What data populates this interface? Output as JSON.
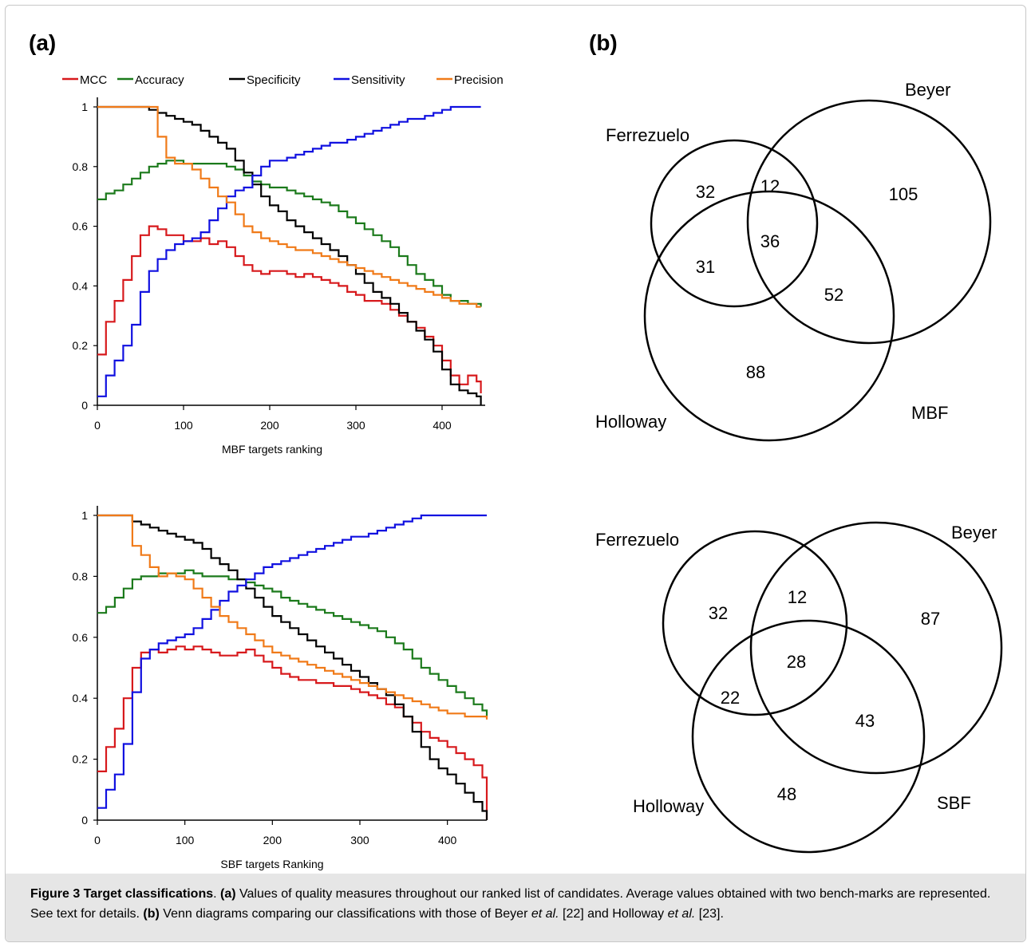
{
  "panel_a_label": "(a)",
  "panel_b_label": "(b)",
  "colors": {
    "MCC": "#d7191c",
    "Accuracy": "#1b7a1b",
    "Specificity": "#000000",
    "Sensitivity": "#1010e0",
    "Precision": "#f07a18"
  },
  "chart_data": [
    {
      "type": "line",
      "xlabel": "MBF targets ranking",
      "ylabel": "",
      "xlim": [
        0,
        450
      ],
      "ylim": [
        0,
        1
      ],
      "xticks": [
        "0",
        "100",
        "200",
        "300",
        "400"
      ],
      "yticks": [
        "0",
        "0.2",
        "0.4",
        "0.6",
        "0.8",
        "1"
      ],
      "legend": "top",
      "x": [
        0,
        10,
        20,
        30,
        40,
        50,
        60,
        70,
        80,
        90,
        100,
        110,
        120,
        130,
        140,
        150,
        160,
        170,
        180,
        190,
        200,
        210,
        220,
        230,
        240,
        250,
        260,
        270,
        280,
        290,
        300,
        310,
        320,
        330,
        340,
        350,
        360,
        370,
        380,
        390,
        400,
        410,
        420,
        430,
        440,
        445
      ],
      "series": [
        {
          "name": "MCC",
          "values": [
            0.17,
            0.28,
            0.35,
            0.42,
            0.5,
            0.57,
            0.6,
            0.59,
            0.57,
            0.57,
            0.55,
            0.55,
            0.56,
            0.54,
            0.55,
            0.53,
            0.5,
            0.47,
            0.45,
            0.44,
            0.45,
            0.45,
            0.44,
            0.43,
            0.44,
            0.43,
            0.42,
            0.41,
            0.4,
            0.38,
            0.37,
            0.35,
            0.35,
            0.34,
            0.32,
            0.3,
            0.28,
            0.26,
            0.23,
            0.2,
            0.15,
            0.1,
            0.07,
            0.1,
            0.08,
            0.04
          ]
        },
        {
          "name": "Accuracy",
          "values": [
            0.69,
            0.71,
            0.72,
            0.74,
            0.76,
            0.78,
            0.8,
            0.81,
            0.82,
            0.82,
            0.81,
            0.81,
            0.81,
            0.81,
            0.81,
            0.8,
            0.79,
            0.77,
            0.75,
            0.74,
            0.73,
            0.73,
            0.72,
            0.71,
            0.7,
            0.69,
            0.68,
            0.67,
            0.65,
            0.63,
            0.61,
            0.59,
            0.57,
            0.55,
            0.53,
            0.5,
            0.47,
            0.44,
            0.42,
            0.4,
            0.37,
            0.35,
            0.35,
            0.34,
            0.34,
            0.33
          ]
        },
        {
          "name": "Specificity",
          "values": [
            1.0,
            1.0,
            1.0,
            1.0,
            1.0,
            1.0,
            0.99,
            0.98,
            0.97,
            0.96,
            0.95,
            0.94,
            0.92,
            0.9,
            0.88,
            0.86,
            0.82,
            0.78,
            0.74,
            0.7,
            0.67,
            0.65,
            0.62,
            0.6,
            0.58,
            0.56,
            0.54,
            0.52,
            0.5,
            0.47,
            0.44,
            0.41,
            0.38,
            0.36,
            0.34,
            0.31,
            0.28,
            0.25,
            0.22,
            0.18,
            0.12,
            0.07,
            0.05,
            0.04,
            0.03,
            0.0
          ]
        },
        {
          "name": "Sensitivity",
          "values": [
            0.03,
            0.1,
            0.15,
            0.2,
            0.27,
            0.38,
            0.45,
            0.49,
            0.52,
            0.54,
            0.55,
            0.56,
            0.58,
            0.62,
            0.66,
            0.7,
            0.72,
            0.73,
            0.77,
            0.8,
            0.82,
            0.82,
            0.83,
            0.84,
            0.85,
            0.86,
            0.87,
            0.88,
            0.88,
            0.89,
            0.9,
            0.91,
            0.92,
            0.93,
            0.94,
            0.95,
            0.96,
            0.96,
            0.97,
            0.98,
            0.99,
            1.0,
            1.0,
            1.0,
            1.0,
            1.0
          ]
        },
        {
          "name": "Precision",
          "values": [
            1.0,
            1.0,
            1.0,
            1.0,
            1.0,
            1.0,
            1.0,
            0.9,
            0.83,
            0.81,
            0.81,
            0.79,
            0.76,
            0.73,
            0.7,
            0.68,
            0.64,
            0.6,
            0.58,
            0.56,
            0.55,
            0.54,
            0.53,
            0.52,
            0.52,
            0.51,
            0.5,
            0.49,
            0.48,
            0.47,
            0.46,
            0.45,
            0.44,
            0.43,
            0.42,
            0.41,
            0.4,
            0.39,
            0.38,
            0.37,
            0.36,
            0.35,
            0.34,
            0.34,
            0.33,
            0.33
          ]
        }
      ]
    },
    {
      "type": "line",
      "xlabel": "SBF targets Ranking",
      "ylabel": "",
      "xlim": [
        0,
        445
      ],
      "ylim": [
        0,
        1
      ],
      "xticks": [
        "0",
        "100",
        "200",
        "300",
        "400"
      ],
      "yticks": [
        "0",
        "0.2",
        "0.4",
        "0.6",
        "0.8",
        "1"
      ],
      "x": [
        0,
        10,
        20,
        30,
        40,
        50,
        60,
        70,
        80,
        90,
        100,
        110,
        120,
        130,
        140,
        150,
        160,
        170,
        180,
        190,
        200,
        210,
        220,
        230,
        240,
        250,
        260,
        270,
        280,
        290,
        300,
        310,
        320,
        330,
        340,
        350,
        360,
        370,
        380,
        390,
        400,
        410,
        420,
        430,
        440,
        445
      ],
      "series": [
        {
          "name": "MCC",
          "values": [
            0.16,
            0.24,
            0.3,
            0.4,
            0.5,
            0.55,
            0.56,
            0.55,
            0.56,
            0.57,
            0.56,
            0.57,
            0.56,
            0.55,
            0.54,
            0.54,
            0.55,
            0.56,
            0.54,
            0.52,
            0.5,
            0.48,
            0.47,
            0.46,
            0.46,
            0.45,
            0.45,
            0.44,
            0.44,
            0.43,
            0.42,
            0.41,
            0.4,
            0.38,
            0.37,
            0.34,
            0.32,
            0.29,
            0.27,
            0.26,
            0.24,
            0.22,
            0.2,
            0.18,
            0.14,
            0.0
          ]
        },
        {
          "name": "Accuracy",
          "values": [
            0.68,
            0.7,
            0.73,
            0.76,
            0.79,
            0.8,
            0.8,
            0.81,
            0.81,
            0.81,
            0.82,
            0.81,
            0.8,
            0.8,
            0.8,
            0.79,
            0.79,
            0.78,
            0.77,
            0.76,
            0.75,
            0.73,
            0.72,
            0.71,
            0.7,
            0.69,
            0.68,
            0.67,
            0.66,
            0.65,
            0.64,
            0.63,
            0.62,
            0.6,
            0.58,
            0.56,
            0.53,
            0.5,
            0.48,
            0.46,
            0.44,
            0.42,
            0.4,
            0.38,
            0.36,
            0.34
          ]
        },
        {
          "name": "Specificity",
          "values": [
            1.0,
            1.0,
            1.0,
            1.0,
            0.98,
            0.97,
            0.96,
            0.95,
            0.94,
            0.93,
            0.92,
            0.91,
            0.89,
            0.86,
            0.84,
            0.82,
            0.79,
            0.76,
            0.73,
            0.7,
            0.67,
            0.65,
            0.63,
            0.61,
            0.59,
            0.57,
            0.55,
            0.53,
            0.51,
            0.49,
            0.47,
            0.45,
            0.43,
            0.41,
            0.38,
            0.34,
            0.29,
            0.24,
            0.2,
            0.17,
            0.15,
            0.12,
            0.09,
            0.06,
            0.03,
            0.0
          ]
        },
        {
          "name": "Sensitivity",
          "values": [
            0.04,
            0.1,
            0.15,
            0.25,
            0.42,
            0.53,
            0.56,
            0.58,
            0.59,
            0.6,
            0.61,
            0.63,
            0.66,
            0.69,
            0.72,
            0.75,
            0.77,
            0.79,
            0.81,
            0.83,
            0.84,
            0.85,
            0.86,
            0.87,
            0.88,
            0.89,
            0.9,
            0.91,
            0.92,
            0.93,
            0.93,
            0.94,
            0.95,
            0.96,
            0.97,
            0.98,
            0.99,
            1.0,
            1.0,
            1.0,
            1.0,
            1.0,
            1.0,
            1.0,
            1.0,
            1.0
          ]
        },
        {
          "name": "Precision",
          "values": [
            1.0,
            1.0,
            1.0,
            1.0,
            0.9,
            0.87,
            0.83,
            0.8,
            0.81,
            0.8,
            0.79,
            0.76,
            0.73,
            0.7,
            0.67,
            0.65,
            0.63,
            0.61,
            0.59,
            0.57,
            0.55,
            0.54,
            0.53,
            0.52,
            0.51,
            0.5,
            0.49,
            0.48,
            0.47,
            0.46,
            0.45,
            0.44,
            0.43,
            0.42,
            0.41,
            0.4,
            0.39,
            0.38,
            0.37,
            0.36,
            0.35,
            0.35,
            0.34,
            0.34,
            0.34,
            0.33
          ]
        }
      ]
    }
  ],
  "venn": [
    {
      "sets": [
        "Ferrezuelo",
        "Beyer",
        "Holloway"
      ],
      "corner_label": "MBF",
      "regions": {
        "F_only": "32",
        "FB": "12",
        "B_only": "105",
        "FBH": "36",
        "FH": "31",
        "BH": "52",
        "H_only": "88"
      }
    },
    {
      "sets": [
        "Ferrezuelo",
        "Beyer",
        "Holloway"
      ],
      "corner_label": "SBF",
      "regions": {
        "F_only": "32",
        "FB": "12",
        "B_only": "87",
        "FBH": "28",
        "FH": "22",
        "BH": "43",
        "H_only": "48"
      }
    }
  ],
  "caption": {
    "fig_label": "Figure 3 Target classifications",
    "p1": ". ",
    "a_label": "(a)",
    "a_text": " Values of quality measures throughout our ranked list of candidates. Average values obtained with two bench-marks are represented. See text for details. ",
    "b_label": "(b)",
    "b_text1": " Venn diagrams comparing our classifications with those of Beyer ",
    "etal1": "et al.",
    "b_text2": " [22] and Holloway ",
    "etal2": "et al.",
    "b_text3": " [23]."
  }
}
